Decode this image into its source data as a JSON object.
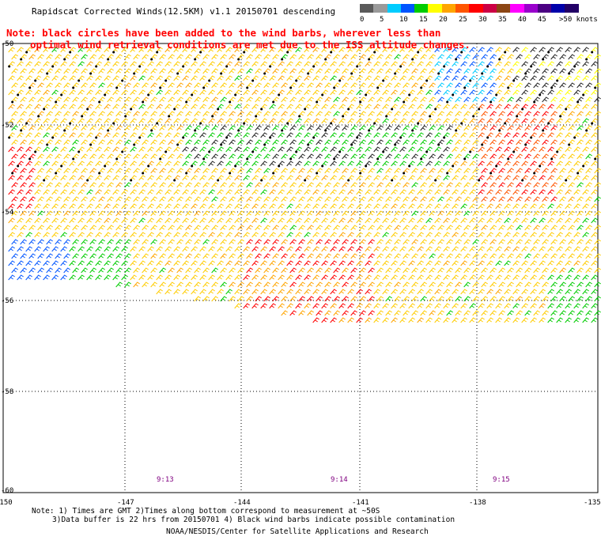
{
  "title": "Rapidscat Corrected Winds(12.5KM) v1.1 20150701 descending",
  "legend": {
    "labels": [
      "0",
      "5",
      "10",
      "15",
      "20",
      "25",
      "30",
      "35",
      "40",
      "45",
      ">50 knots"
    ],
    "colors": [
      "#5a5a5a",
      "#9a9a9a",
      "#00ccff",
      "#0055ff",
      "#00cc00",
      "#ffff00",
      "#ffa500",
      "#ff5500",
      "#ff0000",
      "#cc0044",
      "#8b4513",
      "#ff00ff",
      "#9900cc",
      "#4b0082",
      "#0000aa",
      "#220066"
    ]
  },
  "note": {
    "line1": "Note: black circles have been added to the wind barbs, wherever less than",
    "line2": "optimal wind retrieval conditions are met due to the ISS altitude changes."
  },
  "map": {
    "lat_labels": [
      "-50",
      "-52",
      "-54",
      "-56",
      "-58",
      "-60"
    ],
    "lon_labels": [
      "-150",
      "-147",
      "-144",
      "-141",
      "-138",
      "-135"
    ],
    "times": [
      "9:13",
      "9:14",
      "9:15"
    ]
  },
  "footer": {
    "line1": "Note: 1) Times are GMT 2)Times along bottom correspond to measurement at ~50S",
    "line2": "3)Data buffer is 22 hrs from 20150701 4) Black wind barbs indicate possible contamination",
    "line3": "NOAA/NESDIS/Center for Satellite Applications and Research"
  }
}
